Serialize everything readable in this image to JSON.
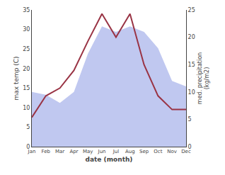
{
  "chart_data": {
    "type": "line",
    "categories": [
      "Jan",
      "Feb",
      "Mar",
      "Apr",
      "May",
      "Jun",
      "Jul",
      "Aug",
      "Sep",
      "Oct",
      "Nov",
      "Dec"
    ],
    "series": [
      {
        "type": "area",
        "axis": "y2",
        "color": "#c0c8f0",
        "values": [
          10.0,
          9.5,
          8.0,
          10.0,
          17.0,
          22.0,
          21.0,
          22.0,
          21.0,
          18.0,
          12.0,
          11.0
        ]
      },
      {
        "type": "line",
        "color": "#993344",
        "values": [
          7.5,
          13.0,
          15.0,
          19.5,
          27.0,
          34.0,
          28.0,
          34.0,
          21.0,
          13.0,
          9.5,
          9.5
        ]
      }
    ],
    "xlabel": "date (month)",
    "ylabel": "max temp (C)",
    "y2label": "med. precipitation\n(kg/m2)",
    "ylim": [
      0,
      35
    ],
    "yticks": [
      0,
      5,
      10,
      15,
      20,
      25,
      30,
      35
    ],
    "y2lim": [
      0,
      25
    ],
    "y2ticks": [
      0,
      5,
      10,
      15,
      20,
      25
    ],
    "grid": false
  }
}
